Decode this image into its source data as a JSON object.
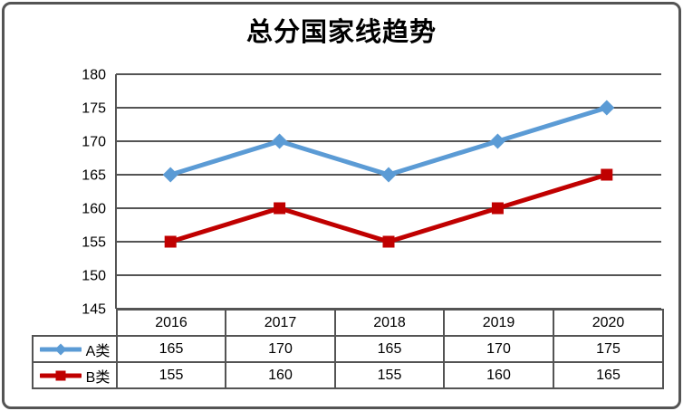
{
  "title": "总分国家线趋势",
  "colors": {
    "grid": "#545454",
    "frame_border": "#545454",
    "series_a": "#5B9BD5",
    "series_b": "#C00000",
    "text": "#000000",
    "background": "#FFFFFF"
  },
  "chart_data": {
    "type": "line",
    "title": "总分国家线趋势",
    "categories": [
      "2016",
      "2017",
      "2018",
      "2019",
      "2020"
    ],
    "series": [
      {
        "name": "A类",
        "color": "#5B9BD5",
        "marker": "diamond",
        "values": [
          165,
          170,
          165,
          170,
          175
        ]
      },
      {
        "name": "B类",
        "color": "#C00000",
        "marker": "square",
        "values": [
          155,
          160,
          155,
          160,
          165
        ]
      }
    ],
    "ylim": [
      145,
      180
    ],
    "yticks": [
      180,
      175,
      170,
      165,
      160,
      155,
      150,
      145
    ],
    "xlabel": "",
    "ylabel": "",
    "grid": true,
    "legend_position": "table-left"
  }
}
